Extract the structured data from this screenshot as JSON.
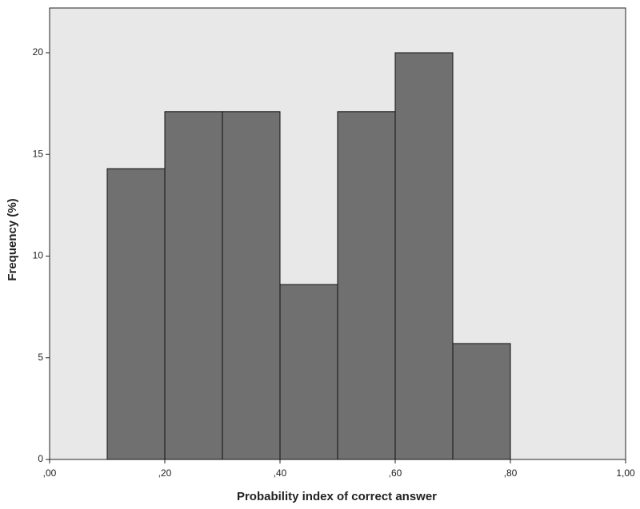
{
  "chart_data": {
    "type": "histogram",
    "x_label": "Probability index of correct answer",
    "y_label": "Frequency (%)",
    "bins": [
      0.1,
      0.2,
      0.3,
      0.4,
      0.5,
      0.6,
      0.7,
      0.8
    ],
    "values": [
      14.3,
      17.1,
      17.1,
      8.6,
      17.1,
      20,
      5.7
    ],
    "color": "#707070",
    "background": "#e8e8e8",
    "xlim": [
      0,
      1
    ],
    "ylim": [
      0,
      22.2
    ],
    "xticks": [
      {
        "value": 0,
        "label": ",00"
      },
      {
        "value": 0.2,
        "label": ",20"
      },
      {
        "value": 0.4,
        "label": ",40"
      },
      {
        "value": 0.6,
        "label": ",60"
      },
      {
        "value": 0.8,
        "label": ",80"
      },
      {
        "value": 1,
        "label": "1,00"
      }
    ],
    "yticks": [
      0,
      5,
      10,
      15,
      20
    ],
    "grid": false
  }
}
